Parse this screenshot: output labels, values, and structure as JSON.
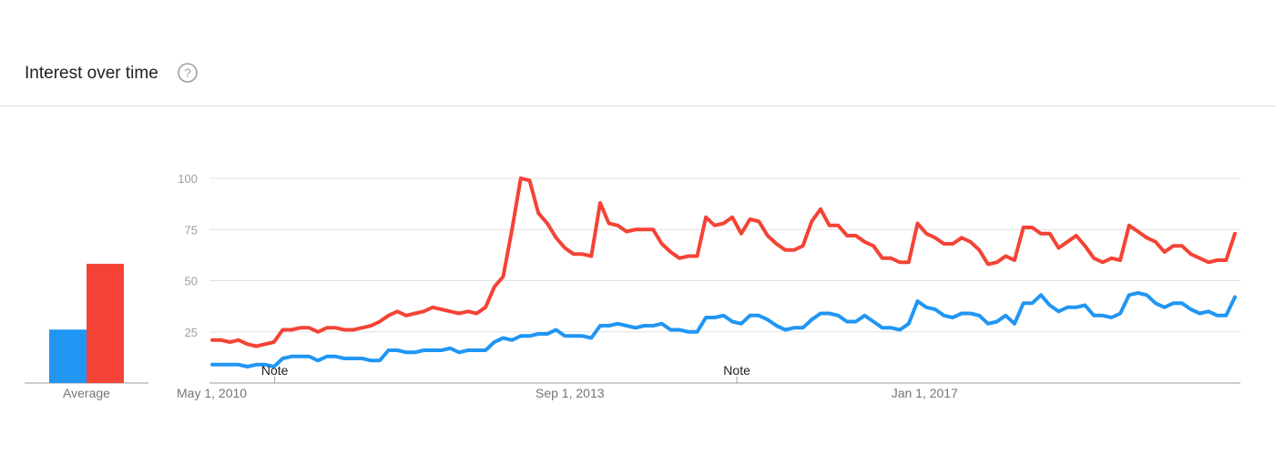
{
  "header": {
    "title": "Interest over time",
    "help_icon": "help-circle-icon"
  },
  "colors": {
    "series_a": "#2196f3",
    "series_b": "#f44336"
  },
  "chart_data": [
    {
      "type": "bar",
      "categories": [
        "Average"
      ],
      "series": [
        {
          "values": [
            26
          ]
        },
        {
          "values": [
            58
          ]
        }
      ],
      "ylim": [
        0,
        100
      ]
    },
    {
      "type": "line",
      "x_start": "May 1, 2010",
      "x_end": "Dec 1, 2019",
      "xticks": [
        "May 1, 2010",
        "Sep 1, 2013",
        "Jan 1, 2017"
      ],
      "yticks": [
        25,
        50,
        75,
        100
      ],
      "ylim": [
        0,
        100
      ],
      "grid": true,
      "annotations": [
        {
          "label": "Note",
          "date": "Dec 1, 2010"
        },
        {
          "label": "Note",
          "date": "Apr 1, 2015"
        }
      ],
      "series": [
        {
          "values": [
            9,
            9,
            9,
            9,
            8,
            9,
            9,
            8,
            12,
            13,
            13,
            13,
            11,
            13,
            13,
            12,
            12,
            12,
            11,
            11,
            16,
            16,
            15,
            15,
            16,
            16,
            16,
            17,
            15,
            16,
            16,
            16,
            20,
            22,
            21,
            23,
            23,
            24,
            24,
            26,
            23,
            23,
            23,
            22,
            28,
            28,
            29,
            28,
            27,
            28,
            28,
            29,
            26,
            26,
            25,
            25,
            32,
            32,
            33,
            30,
            29,
            33,
            33,
            31,
            28,
            26,
            27,
            27,
            31,
            34,
            34,
            33,
            30,
            30,
            33,
            30,
            27,
            27,
            26,
            29,
            40,
            37,
            36,
            33,
            32,
            34,
            34,
            33,
            29,
            30,
            33,
            29,
            39,
            39,
            43,
            38,
            35,
            37,
            37,
            38,
            33,
            33,
            32,
            34,
            43,
            44,
            43,
            39,
            37,
            39,
            39,
            36,
            34,
            35,
            33,
            33,
            42
          ]
        },
        {
          "values": [
            21,
            21,
            20,
            21,
            19,
            18,
            19,
            20,
            26,
            26,
            27,
            27,
            25,
            27,
            27,
            26,
            26,
            27,
            28,
            30,
            33,
            35,
            33,
            34,
            35,
            37,
            36,
            35,
            34,
            35,
            34,
            37,
            47,
            52,
            75,
            100,
            99,
            83,
            78,
            71,
            66,
            63,
            63,
            62,
            88,
            78,
            77,
            74,
            75,
            75,
            75,
            68,
            64,
            61,
            62,
            62,
            81,
            77,
            78,
            81,
            73,
            80,
            79,
            72,
            68,
            65,
            65,
            67,
            79,
            85,
            77,
            77,
            72,
            72,
            69,
            67,
            61,
            61,
            59,
            59,
            78,
            73,
            71,
            68,
            68,
            71,
            69,
            65,
            58,
            59,
            62,
            60,
            76,
            76,
            73,
            73,
            66,
            69,
            72,
            67,
            61,
            59,
            61,
            60,
            77,
            74,
            71,
            69,
            64,
            67,
            67,
            63,
            61,
            59,
            60,
            60,
            73
          ]
        }
      ]
    }
  ]
}
